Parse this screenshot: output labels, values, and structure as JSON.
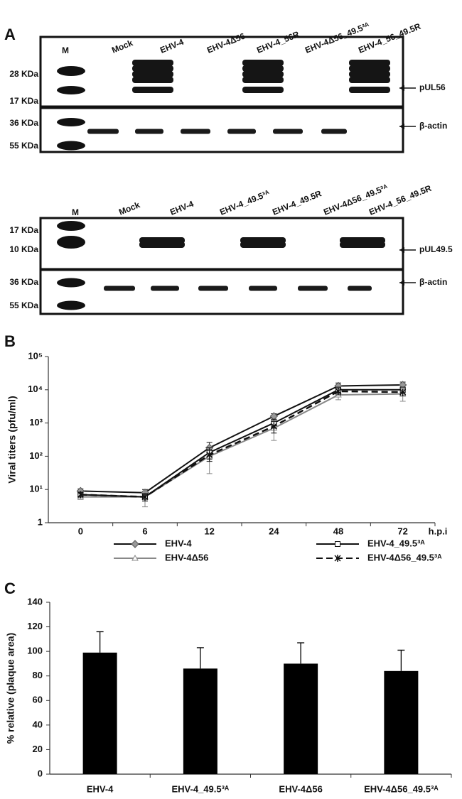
{
  "panel_labels": [
    "A",
    "B",
    "C"
  ],
  "blots": [
    {
      "lanes": [
        "M",
        "Mock",
        "EHV-4",
        "EHV-4Δ56",
        "EHV-4_56R",
        "EHV-4Δ56_49.5³ᴬ",
        "EHV-4_56_49.5R"
      ],
      "markers": [
        "28 KDa",
        "17 KDa",
        "36 KDa",
        "55 KDa"
      ],
      "targets": [
        "pUL56",
        "β-actin"
      ]
    },
    {
      "lanes": [
        "M",
        "Mock",
        "EHV-4",
        "EHV-4_49.5³ᴬ",
        "EHV-4_49.5R",
        "EHV-4Δ56_49.5³ᴬ",
        "EHV-4_56_49.5R"
      ],
      "markers": [
        "17 KDa",
        "10 KDa",
        "36 KDa",
        "55 KDa"
      ],
      "targets": [
        "pUL49.5",
        "β-actin"
      ]
    }
  ],
  "chart_data": [
    {
      "type": "line",
      "categories": [
        "0",
        "6",
        "12",
        "24",
        "48",
        "72"
      ],
      "x_label": "h.p.i",
      "y_label": "Viral titers (pfu/ml)",
      "log_scale": true,
      "ylim": [
        1,
        100000
      ],
      "yticks": [
        1,
        {
          "value": 10,
          "label": "10¹"
        },
        {
          "value": 100,
          "label": "10²"
        },
        {
          "value": 1000,
          "label": "10³"
        },
        {
          "value": 10000,
          "label": "10⁴"
        },
        {
          "value": 100000,
          "label": "10⁵"
        }
      ],
      "series": [
        {
          "name": "EHV-4",
          "color": "#111111",
          "marker": "diamond",
          "dash": false,
          "values": [
            9,
            8,
            180,
            1600,
            13000,
            14000
          ],
          "errors": [
            1.5,
            2,
            80,
            300,
            3000,
            3000
          ]
        },
        {
          "name": "EHV-4Δ56",
          "color": "#888888",
          "marker": "triangle",
          "dash": false,
          "values": [
            6,
            6,
            100,
            700,
            7000,
            7500
          ],
          "errors": [
            1,
            3,
            70,
            400,
            2000,
            3000
          ]
        },
        {
          "name": "EHV-4_49.5³ᴬ",
          "color": "#111111",
          "marker": "square",
          "dash": false,
          "values": [
            7,
            6,
            130,
            1000,
            10000,
            10000
          ],
          "errors": [
            1,
            1.5,
            50,
            300,
            2000,
            2000
          ]
        },
        {
          "name": "EHV-4Δ56_49.5³ᴬ",
          "color": "#111111",
          "marker": "asterisk",
          "dash": true,
          "values": [
            7,
            6,
            110,
            800,
            9000,
            8500
          ],
          "errors": [
            1,
            1.5,
            40,
            300,
            2000,
            2000
          ]
        }
      ]
    },
    {
      "type": "bar",
      "y_label": "% relative (plaque area)",
      "categories": [
        "EHV-4",
        "EHV-4_49.5³ᴬ",
        "EHV-4Δ56",
        "EHV-4Δ56_49.5³ᴬ"
      ],
      "values": [
        99,
        86,
        90,
        84
      ],
      "errors": [
        17,
        17,
        17,
        17
      ],
      "color": "#000000",
      "ylim": [
        0,
        140
      ],
      "yticks": [
        0,
        20,
        40,
        60,
        80,
        100,
        120,
        140
      ]
    }
  ]
}
